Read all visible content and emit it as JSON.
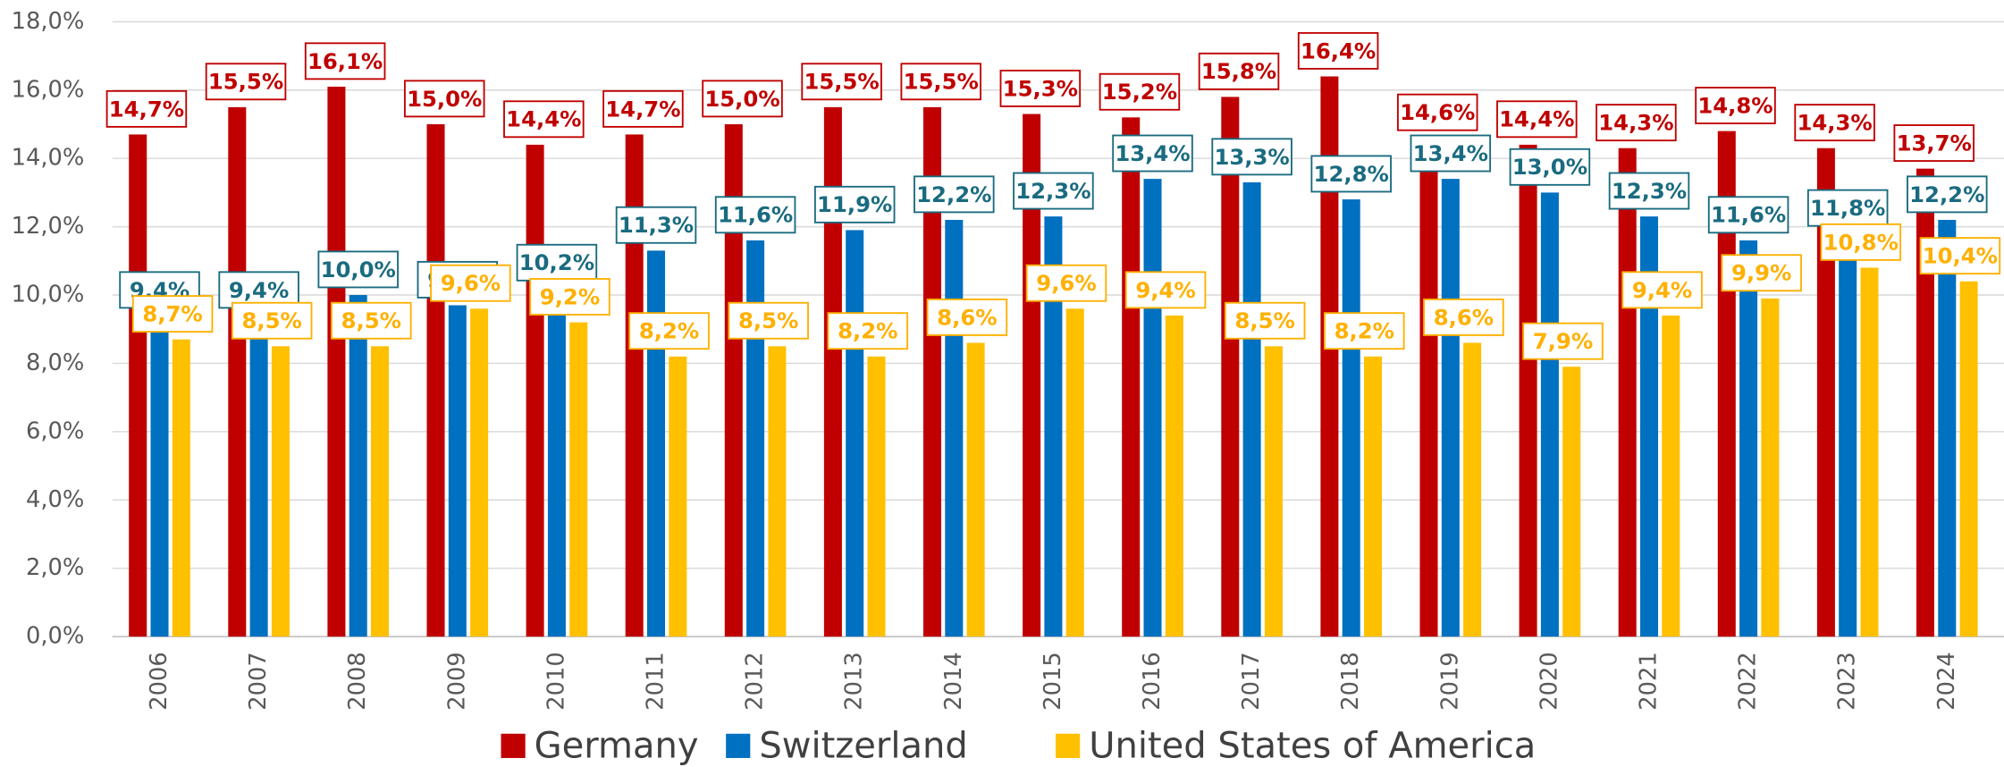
{
  "chart_data": {
    "type": "bar",
    "categories": [
      "2006",
      "2007",
      "2008",
      "2009",
      "2010",
      "2011",
      "2012",
      "2013",
      "2014",
      "2015",
      "2016",
      "2017",
      "2018",
      "2019",
      "2020",
      "2021",
      "2022",
      "2023",
      "2024"
    ],
    "series": [
      {
        "name": "Germany",
        "color": "#c00000",
        "label_color": "#c00000",
        "values": [
          14.7,
          15.5,
          16.1,
          15.0,
          14.4,
          14.7,
          15.0,
          15.5,
          15.5,
          15.3,
          15.2,
          15.8,
          16.4,
          14.6,
          14.4,
          14.3,
          14.8,
          14.3,
          13.7
        ],
        "value_labels": [
          "14,7%",
          "15,5%",
          "16,1%",
          "15,0%",
          "14,4%",
          "14,7%",
          "15,0%",
          "15,5%",
          "15,5%",
          "15,3%",
          "15,2%",
          "15,8%",
          "16,4%",
          "14,6%",
          "14,4%",
          "14,3%",
          "14,8%",
          "14,3%",
          "13,7%"
        ]
      },
      {
        "name": "Switzerland",
        "color": "#0070c0",
        "label_color": "#1a6b80",
        "values": [
          9.4,
          9.4,
          10.0,
          9.7,
          10.2,
          11.3,
          11.6,
          11.9,
          12.2,
          12.3,
          13.4,
          13.3,
          12.8,
          13.4,
          13.0,
          12.3,
          11.6,
          11.8,
          12.2
        ],
        "value_labels": [
          "9,4%",
          "9,4%",
          "10,0%",
          "9,7%",
          "10,2%",
          "11,3%",
          "11,6%",
          "11,9%",
          "12,2%",
          "12,3%",
          "13,4%",
          "13,3%",
          "12,8%",
          "13,4%",
          "13,0%",
          "12,3%",
          "11,6%",
          "11,8%",
          "12,2%"
        ]
      },
      {
        "name": "United States of America",
        "color": "#ffc000",
        "label_color": "#ffb000",
        "values": [
          8.7,
          8.5,
          8.5,
          9.6,
          9.2,
          8.2,
          8.5,
          8.2,
          8.6,
          9.6,
          9.4,
          8.5,
          8.2,
          8.6,
          7.9,
          9.4,
          9.9,
          10.8,
          10.4
        ],
        "value_labels": [
          "8,7%",
          "8,5%",
          "8,5%",
          "9,6%",
          "9,2%",
          "8,2%",
          "8,5%",
          "8,2%",
          "8,6%",
          "9,6%",
          "9,4%",
          "8,5%",
          "8,2%",
          "8,6%",
          "7,9%",
          "9,4%",
          "9,9%",
          "10,8%",
          "10,4%"
        ]
      }
    ],
    "ylim": [
      0,
      18
    ],
    "yticks": [
      {
        "value": 0,
        "label": "0,0%"
      },
      {
        "value": 2,
        "label": "2,0%"
      },
      {
        "value": 4,
        "label": "4,0%"
      },
      {
        "value": 6,
        "label": "6,0%"
      },
      {
        "value": 8,
        "label": "8,0%"
      },
      {
        "value": 10,
        "label": "10,0%"
      },
      {
        "value": 12,
        "label": "12,0%"
      },
      {
        "value": 14,
        "label": "14,0%"
      },
      {
        "value": 16,
        "label": "16,0%"
      },
      {
        "value": 18,
        "label": "18,0%"
      }
    ],
    "grid": true,
    "legend": "bottom"
  }
}
